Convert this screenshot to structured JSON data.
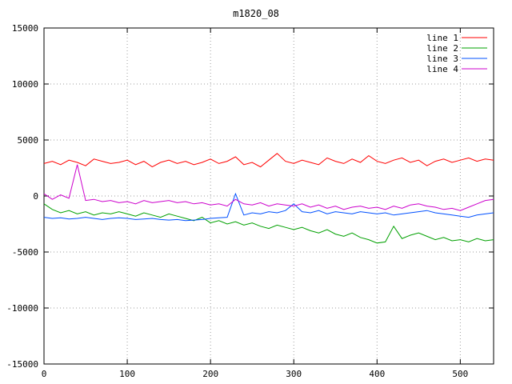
{
  "chart_data": {
    "type": "line",
    "title": "m1820_08",
    "xlabel": "",
    "ylabel": "",
    "xlim": [
      0,
      540
    ],
    "ylim": [
      -15000,
      15000
    ],
    "x_ticks": [
      0,
      100,
      200,
      300,
      400,
      500
    ],
    "y_ticks": [
      -15000,
      -10000,
      -5000,
      0,
      5000,
      10000,
      15000
    ],
    "grid": true,
    "grid_style": "dotted",
    "legend_position": "top-right",
    "border_color": "#000000",
    "grid_color": "#9e9e9e",
    "x_step": 10,
    "series": [
      {
        "name": "line 1",
        "color": "#ff0000",
        "values": [
          2900,
          3100,
          2800,
          3200,
          3000,
          2700,
          3300,
          3100,
          2900,
          3000,
          3200,
          2800,
          3100,
          2600,
          3000,
          3200,
          2900,
          3100,
          2800,
          3000,
          3300,
          2900,
          3100,
          3500,
          2800,
          3000,
          2600,
          3200,
          3800,
          3100,
          2900,
          3200,
          3000,
          2800,
          3400,
          3100,
          2900,
          3300,
          3000,
          3600,
          3100,
          2900,
          3200,
          3400,
          3000,
          3200,
          2700,
          3100,
          3300,
          3000,
          3200,
          3400,
          3100,
          3300,
          3200
        ]
      },
      {
        "name": "line 2",
        "color": "#00a000",
        "values": [
          -700,
          -1200,
          -1500,
          -1300,
          -1600,
          -1400,
          -1700,
          -1500,
          -1600,
          -1400,
          -1600,
          -1800,
          -1500,
          -1700,
          -1900,
          -1600,
          -1800,
          -2000,
          -2200,
          -1900,
          -2400,
          -2200,
          -2500,
          -2300,
          -2600,
          -2400,
          -2700,
          -2900,
          -2600,
          -2800,
          -3000,
          -2800,
          -3100,
          -3300,
          -3000,
          -3400,
          -3600,
          -3300,
          -3700,
          -3900,
          -4200,
          -4100,
          -2700,
          -3800,
          -3500,
          -3300,
          -3600,
          -3900,
          -3700,
          -4000,
          -3900,
          -4100,
          -3800,
          -4000,
          -3900
        ]
      },
      {
        "name": "line 3",
        "color": "#0050ff",
        "values": [
          -1900,
          -2000,
          -1950,
          -2050,
          -2000,
          -1900,
          -2000,
          -2100,
          -2000,
          -1950,
          -2000,
          -2100,
          -2050,
          -2000,
          -2100,
          -2150,
          -2100,
          -2200,
          -2150,
          -2100,
          -2000,
          -1950,
          -1900,
          200,
          -1700,
          -1500,
          -1600,
          -1400,
          -1500,
          -1300,
          -700,
          -1400,
          -1500,
          -1300,
          -1600,
          -1400,
          -1500,
          -1600,
          -1400,
          -1500,
          -1600,
          -1500,
          -1700,
          -1600,
          -1500,
          -1400,
          -1300,
          -1500,
          -1600,
          -1700,
          -1800,
          -1900,
          -1700,
          -1600,
          -1500
        ]
      },
      {
        "name": "line 4",
        "color": "#cc00cc",
        "values": [
          200,
          -300,
          100,
          -200,
          2800,
          -400,
          -300,
          -500,
          -400,
          -600,
          -500,
          -700,
          -400,
          -600,
          -500,
          -400,
          -600,
          -500,
          -700,
          -600,
          -800,
          -700,
          -900,
          -300,
          -700,
          -800,
          -600,
          -900,
          -700,
          -800,
          -900,
          -700,
          -1000,
          -800,
          -1100,
          -900,
          -1200,
          -1000,
          -900,
          -1100,
          -1000,
          -1200,
          -900,
          -1100,
          -800,
          -700,
          -900,
          -1000,
          -1200,
          -1100,
          -1300,
          -1000,
          -700,
          -400,
          -300
        ]
      }
    ]
  }
}
